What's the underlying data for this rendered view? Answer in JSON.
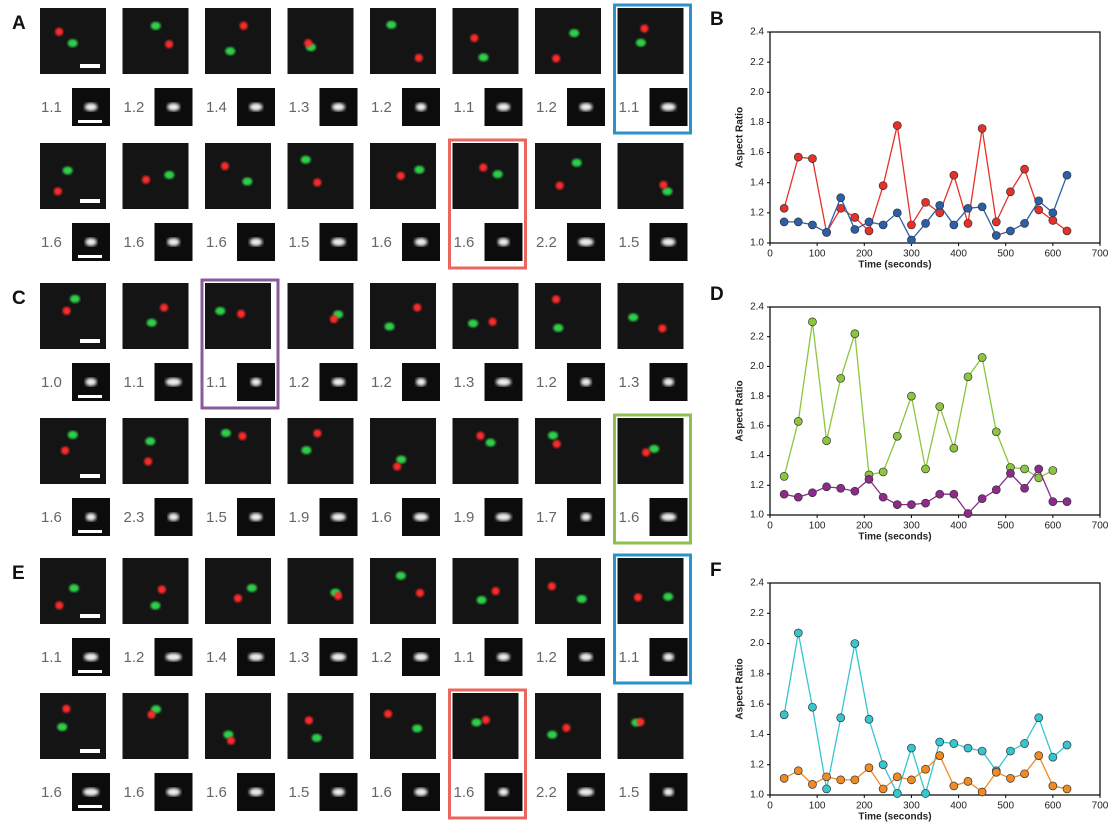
{
  "image_panels": [
    {
      "label": "A",
      "rows": [
        [
          {
            "ratio": "1.1"
          },
          {
            "ratio": "1.2"
          },
          {
            "ratio": "1.4"
          },
          {
            "ratio": "1.3"
          },
          {
            "ratio": "1.2"
          },
          {
            "ratio": "1.1"
          },
          {
            "ratio": "1.2"
          },
          {
            "ratio": "1.1",
            "frame": "#2a93cc"
          }
        ],
        [
          {
            "ratio": "1.6"
          },
          {
            "ratio": "1.6"
          },
          {
            "ratio": "1.6"
          },
          {
            "ratio": "1.5"
          },
          {
            "ratio": "1.6"
          },
          {
            "ratio": "1.6",
            "frame": "#e8675f"
          },
          {
            "ratio": "2.2"
          },
          {
            "ratio": "1.5"
          }
        ]
      ]
    },
    {
      "label": "C",
      "rows": [
        [
          {
            "ratio": "1.0"
          },
          {
            "ratio": "1.1"
          },
          {
            "ratio": "1.1",
            "frame": "#8a5a9a"
          },
          {
            "ratio": "1.2"
          },
          {
            "ratio": "1.2"
          },
          {
            "ratio": "1.3"
          },
          {
            "ratio": "1.2"
          },
          {
            "ratio": "1.3"
          }
        ],
        [
          {
            "ratio": "1.6"
          },
          {
            "ratio": "2.3"
          },
          {
            "ratio": "1.5"
          },
          {
            "ratio": "1.9"
          },
          {
            "ratio": "1.6"
          },
          {
            "ratio": "1.9"
          },
          {
            "ratio": "1.7"
          },
          {
            "ratio": "1.6",
            "frame": "#8dc04f"
          }
        ]
      ]
    },
    {
      "label": "E",
      "rows": [
        [
          {
            "ratio": "1.1"
          },
          {
            "ratio": "1.2"
          },
          {
            "ratio": "1.4"
          },
          {
            "ratio": "1.3"
          },
          {
            "ratio": "1.2"
          },
          {
            "ratio": "1.1"
          },
          {
            "ratio": "1.2"
          },
          {
            "ratio": "1.1",
            "frame": "#2a93cc"
          }
        ],
        [
          {
            "ratio": "1.6"
          },
          {
            "ratio": "1.6"
          },
          {
            "ratio": "1.6"
          },
          {
            "ratio": "1.5"
          },
          {
            "ratio": "1.6"
          },
          {
            "ratio": "1.6",
            "frame": "#e8675f"
          },
          {
            "ratio": "2.2"
          },
          {
            "ratio": "1.5"
          }
        ]
      ]
    }
  ],
  "chart_data": [
    {
      "type": "line",
      "panel_label": "B",
      "x_label": "Time (seconds)",
      "y_label": "Aspect Ratio",
      "x": [
        30,
        60,
        90,
        120,
        150,
        180,
        210,
        240,
        270,
        300,
        330,
        360,
        390,
        420,
        450,
        480,
        510,
        540,
        570,
        600,
        630
      ],
      "series": [
        {
          "color": "#e8302a",
          "values": [
            1.23,
            1.57,
            1.56,
            1.07,
            1.23,
            1.17,
            1.08,
            1.38,
            1.78,
            1.12,
            1.27,
            1.2,
            1.45,
            1.13,
            1.76,
            1.14,
            1.34,
            1.49,
            1.22,
            1.15,
            1.08
          ]
        },
        {
          "color": "#2c5fa8",
          "values": [
            1.14,
            1.14,
            1.12,
            1.07,
            1.3,
            1.09,
            1.14,
            1.12,
            1.2,
            1.02,
            1.13,
            1.25,
            1.12,
            1.23,
            1.24,
            1.05,
            1.08,
            1.13,
            1.28,
            1.2,
            1.45
          ]
        }
      ],
      "xlim": [
        0,
        700
      ],
      "xticks": [
        0,
        100,
        200,
        300,
        400,
        500,
        600,
        700
      ],
      "ylim": [
        1.0,
        2.4
      ],
      "yticks": [
        {
          "value": 1.0,
          "label": "1.0"
        },
        1.2,
        1.4,
        1.6,
        1.8,
        {
          "value": 2.0,
          "label": "2.0"
        },
        2.2,
        2.4
      ],
      "grid": false
    },
    {
      "type": "line",
      "panel_label": "D",
      "x_label": "Time (seconds)",
      "y_label": "Aspect Ratio",
      "x": [
        30,
        60,
        90,
        120,
        150,
        180,
        210,
        240,
        270,
        300,
        330,
        360,
        390,
        420,
        450,
        480,
        510,
        540,
        570,
        600,
        630
      ],
      "series": [
        {
          "color": "#8cc63e",
          "values": [
            1.26,
            1.63,
            2.3,
            1.5,
            1.92,
            2.22,
            1.27,
            1.29,
            1.53,
            1.8,
            1.31,
            1.73,
            1.45,
            1.93,
            2.06,
            1.56,
            1.32,
            1.31,
            1.25,
            1.3,
            null
          ]
        },
        {
          "color": "#8e2a8c",
          "values": [
            1.14,
            1.12,
            1.15,
            1.19,
            1.18,
            1.16,
            1.24,
            1.12,
            1.07,
            1.07,
            1.08,
            1.14,
            1.14,
            1.01,
            1.11,
            1.17,
            1.28,
            1.18,
            1.31,
            1.09,
            1.09
          ]
        }
      ],
      "xlim": [
        0,
        700
      ],
      "xticks": [
        0,
        100,
        200,
        300,
        400,
        500,
        600,
        700
      ],
      "ylim": [
        1.0,
        2.4
      ],
      "yticks": [
        {
          "value": 1.0,
          "label": "1.0"
        },
        1.2,
        1.4,
        1.6,
        1.8,
        {
          "value": 2.0,
          "label": "2.0"
        },
        2.2,
        2.4
      ],
      "grid": false
    },
    {
      "type": "line",
      "panel_label": "F",
      "x_label": "Time (seconds)",
      "y_label": "Aspect Ratio",
      "x": [
        30,
        60,
        90,
        120,
        150,
        180,
        210,
        240,
        270,
        300,
        330,
        360,
        390,
        420,
        450,
        480,
        510,
        540,
        570,
        600,
        630
      ],
      "series": [
        {
          "color": "#35c6cf",
          "values": [
            1.53,
            2.07,
            1.58,
            1.04,
            1.51,
            2.0,
            1.5,
            1.2,
            1.01,
            1.31,
            1.01,
            1.35,
            1.34,
            1.31,
            1.29,
            1.16,
            1.29,
            1.34,
            1.51,
            1.25,
            1.33
          ]
        },
        {
          "color": "#f08a24",
          "values": [
            1.11,
            1.16,
            1.07,
            1.12,
            1.1,
            1.1,
            1.18,
            1.04,
            1.12,
            1.1,
            1.17,
            1.26,
            1.06,
            1.09,
            1.02,
            1.15,
            1.11,
            1.14,
            1.26,
            1.06,
            1.04
          ]
        }
      ],
      "xlim": [
        0,
        700
      ],
      "xticks": [
        0,
        100,
        200,
        300,
        400,
        500,
        600,
        700
      ],
      "ylim": [
        1.0,
        2.4
      ],
      "yticks": [
        {
          "value": 1.0,
          "label": "1.0"
        },
        1.2,
        1.4,
        1.6,
        1.8,
        {
          "value": 2.0,
          "label": "2.0"
        },
        2.2,
        2.4
      ],
      "grid": false
    }
  ]
}
